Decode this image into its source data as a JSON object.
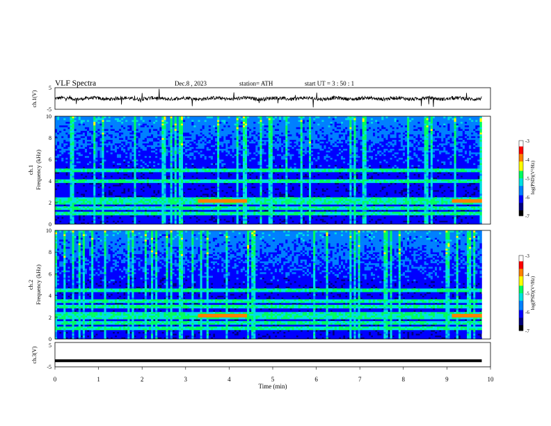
{
  "header": {
    "title": "VLF Spectra",
    "date": "Dec.8 , 2023",
    "station": "station= ATH",
    "start": "start UT = 3 : 50 : 1"
  },
  "chart_data": [
    {
      "type": "line",
      "panel": "ch1-waveform",
      "ylabel": "ch.1(V)",
      "ylim": [
        -5,
        5
      ],
      "yticks": [
        "5",
        "-5"
      ],
      "description_series": "noisy waveform centered near 0 V",
      "x_range_min": [
        0,
        9.8
      ],
      "y_mean": 0
    },
    {
      "type": "heatmap",
      "panel": "ch1-spectrogram",
      "ylabel": "ch.1 Frequency (kHz)",
      "ylim": [
        0,
        10
      ],
      "yticks": [
        "0",
        "2",
        "4",
        "6",
        "8",
        "10"
      ],
      "x_range_min": [
        0,
        9.8
      ],
      "bands_khz": [
        1.0,
        1.5,
        2.0,
        2.3,
        4.0,
        5.0
      ],
      "enhanced_intervals_min": [
        [
          3.3,
          4.4
        ],
        [
          9.1,
          9.8
        ]
      ],
      "colorbar": {
        "label": "log(PSD)(V²/Hz)",
        "range": [
          -7,
          -3
        ],
        "ticks": [
          "-3",
          "-4",
          "-5",
          "-6",
          "-7"
        ]
      }
    },
    {
      "type": "heatmap",
      "panel": "ch2-spectrogram",
      "ylabel": "ch.2 Frequency (kHz)",
      "ylim": [
        0,
        10
      ],
      "yticks": [
        "0",
        "2",
        "4",
        "6",
        "8",
        "10"
      ],
      "x_range_min": [
        0,
        9.8
      ],
      "bands_khz": [
        1.0,
        1.5,
        2.0,
        2.3,
        3.0,
        3.5,
        4.5
      ],
      "enhanced_intervals_min": [
        [
          3.3,
          4.4
        ],
        [
          9.1,
          9.8
        ]
      ],
      "colorbar": {
        "label": "log(PSD)(V²/Hz)",
        "range": [
          -7,
          -3
        ],
        "ticks": [
          "-3",
          "-4",
          "-5",
          "-6",
          "-7"
        ]
      }
    },
    {
      "type": "line",
      "panel": "ch3-waveform",
      "ylabel": "ch.3(V)",
      "ylim": [
        -5,
        5
      ],
      "yticks": [
        "5",
        "-5"
      ],
      "x_range_min": [
        0,
        9.8
      ],
      "y_constant": -2.5
    }
  ],
  "xaxis": {
    "label": "Time (min)",
    "ticks": [
      "0",
      "1",
      "2",
      "3",
      "4",
      "5",
      "6",
      "7",
      "8",
      "9",
      "10"
    ]
  },
  "colors": {
    "colormap": [
      "#000000",
      "#00007a",
      "#0000ff",
      "#0080ff",
      "#00e0e0",
      "#00ff60",
      "#ffff00",
      "#ff8000",
      "#ff0000",
      "#ffffff"
    ]
  }
}
